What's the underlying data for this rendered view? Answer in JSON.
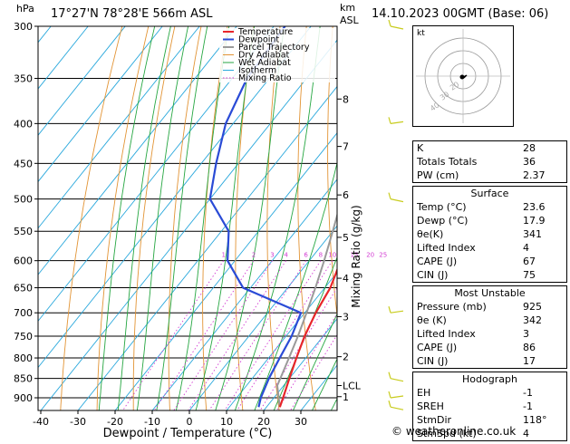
{
  "header": {
    "location": "17°27'N  78°28'E  566m  ASL",
    "datetime": "14.10.2023  00GMT  (Base: 06)",
    "hpa_unit": "hPa",
    "km_unit": "km",
    "asl_unit": "ASL"
  },
  "chart_data": {
    "type": "line",
    "title": "17°27'N  78°28'E  566m  ASL",
    "xlabel": "Dewpoint / Temperature (°C)",
    "ylabel": "hPa",
    "right_ylabel": "Mixing Ratio (g/kg)",
    "xlim": [
      -40,
      40
    ],
    "ylim": [
      300,
      940
    ],
    "pressure_ticks": [
      300,
      350,
      400,
      450,
      500,
      550,
      600,
      650,
      700,
      750,
      800,
      850,
      900
    ],
    "temperature_ticks": [
      -40,
      -30,
      -20,
      -10,
      0,
      10,
      20,
      30
    ],
    "km_ticks": [
      {
        "label": "8",
        "p": 372
      },
      {
        "label": "7",
        "p": 428
      },
      {
        "label": "6",
        "p": 494
      },
      {
        "label": "5",
        "p": 560
      },
      {
        "label": "4",
        "p": 632
      },
      {
        "label": "3",
        "p": 708
      },
      {
        "label": "2",
        "p": 797
      },
      {
        "label": "LCL",
        "p": 868
      },
      {
        "label": "1",
        "p": 897
      }
    ],
    "mixing_ratio_labels": [
      "1",
      "2",
      "3",
      "4",
      "6",
      "8",
      "10",
      "15",
      "20",
      "25"
    ],
    "mixing_ratio_values": [
      1,
      2,
      3,
      4,
      6,
      8,
      10,
      15,
      20,
      25
    ],
    "legend": [
      "Temperature",
      "Dewpoint",
      "Parcel Trajectory",
      "Dry Adiabat",
      "Wet Adiabat",
      "Isotherm",
      "Mixing Ratio"
    ],
    "legend_placement": "top-left",
    "series": [
      {
        "name": "Temperature",
        "color": "#e8252a",
        "p": [
          925,
          900,
          850,
          800,
          750,
          700,
          650,
          600,
          550,
          500,
          450,
          400,
          350,
          300
        ],
        "t": [
          23.6,
          22.5,
          20.0,
          17.5,
          15.0,
          13.0,
          11.5,
          8.5,
          5.0,
          1.0,
          -6.0,
          -13.0,
          -22.0,
          -32.0
        ]
      },
      {
        "name": "Dewpoint",
        "color": "#2a4bd6",
        "p": [
          925,
          900,
          850,
          800,
          750,
          700,
          650,
          600,
          550,
          500,
          450,
          400,
          350,
          300
        ],
        "t": [
          17.9,
          16.5,
          14.5,
          13.0,
          11.5,
          9.0,
          -12.0,
          -22.0,
          -28.0,
          -40.0,
          -46.0,
          -52.0,
          -56.0,
          -57.0
        ]
      },
      {
        "name": "Parcel Trajectory",
        "color": "#9a9a9a",
        "p": [
          925,
          868,
          800,
          750,
          700,
          650,
          600,
          550,
          500,
          450,
          400,
          350,
          300
        ],
        "t": [
          23.6,
          18.3,
          15.5,
          13.2,
          10.5,
          7.5,
          4.0,
          0.0,
          -4.5,
          -10.5,
          -17.0,
          -25.5,
          -35.5
        ]
      }
    ],
    "wind_barbs_placement": "right"
  },
  "hodograph": {
    "label": "kt",
    "rings": [
      "20",
      "30",
      "40"
    ]
  },
  "indices": {
    "basic": [
      {
        "label": "K",
        "value": "28"
      },
      {
        "label": "Totals Totals",
        "value": "36"
      },
      {
        "label": "PW (cm)",
        "value": "2.37"
      }
    ],
    "surface_title": "Surface",
    "surface": [
      {
        "label": "Temp (°C)",
        "value": "23.6"
      },
      {
        "label": "Dewp (°C)",
        "value": "17.9"
      },
      {
        "label": "θe(K)",
        "value": "341"
      },
      {
        "label": "Lifted Index",
        "value": "4"
      },
      {
        "label": "CAPE (J)",
        "value": "67"
      },
      {
        "label": "CIN (J)",
        "value": "75"
      }
    ],
    "unstable_title": "Most Unstable",
    "unstable": [
      {
        "label": "Pressure (mb)",
        "value": "925"
      },
      {
        "label": "θe (K)",
        "value": "342"
      },
      {
        "label": "Lifted Index",
        "value": "3"
      },
      {
        "label": "CAPE (J)",
        "value": "86"
      },
      {
        "label": "CIN (J)",
        "value": "17"
      }
    ],
    "hodograph_title": "Hodograph",
    "hodograph": [
      {
        "label": "EH",
        "value": "-1"
      },
      {
        "label": "SREH",
        "value": "-1"
      },
      {
        "label": "StmDir",
        "value": "118°"
      },
      {
        "label": "StmSpd (kt)",
        "value": "4"
      }
    ]
  },
  "credit": "© weatheronline.co.uk",
  "colors": {
    "temperature": "#e8252a",
    "dewpoint": "#2a4bd6",
    "parcel": "#9a9a9a",
    "dry_adiabat": "#e29435",
    "wet_adiabat": "#25a641",
    "isotherm": "#29a8dc",
    "mixing_ratio": "#d23cd2",
    "wind": "#c8cc1e"
  }
}
